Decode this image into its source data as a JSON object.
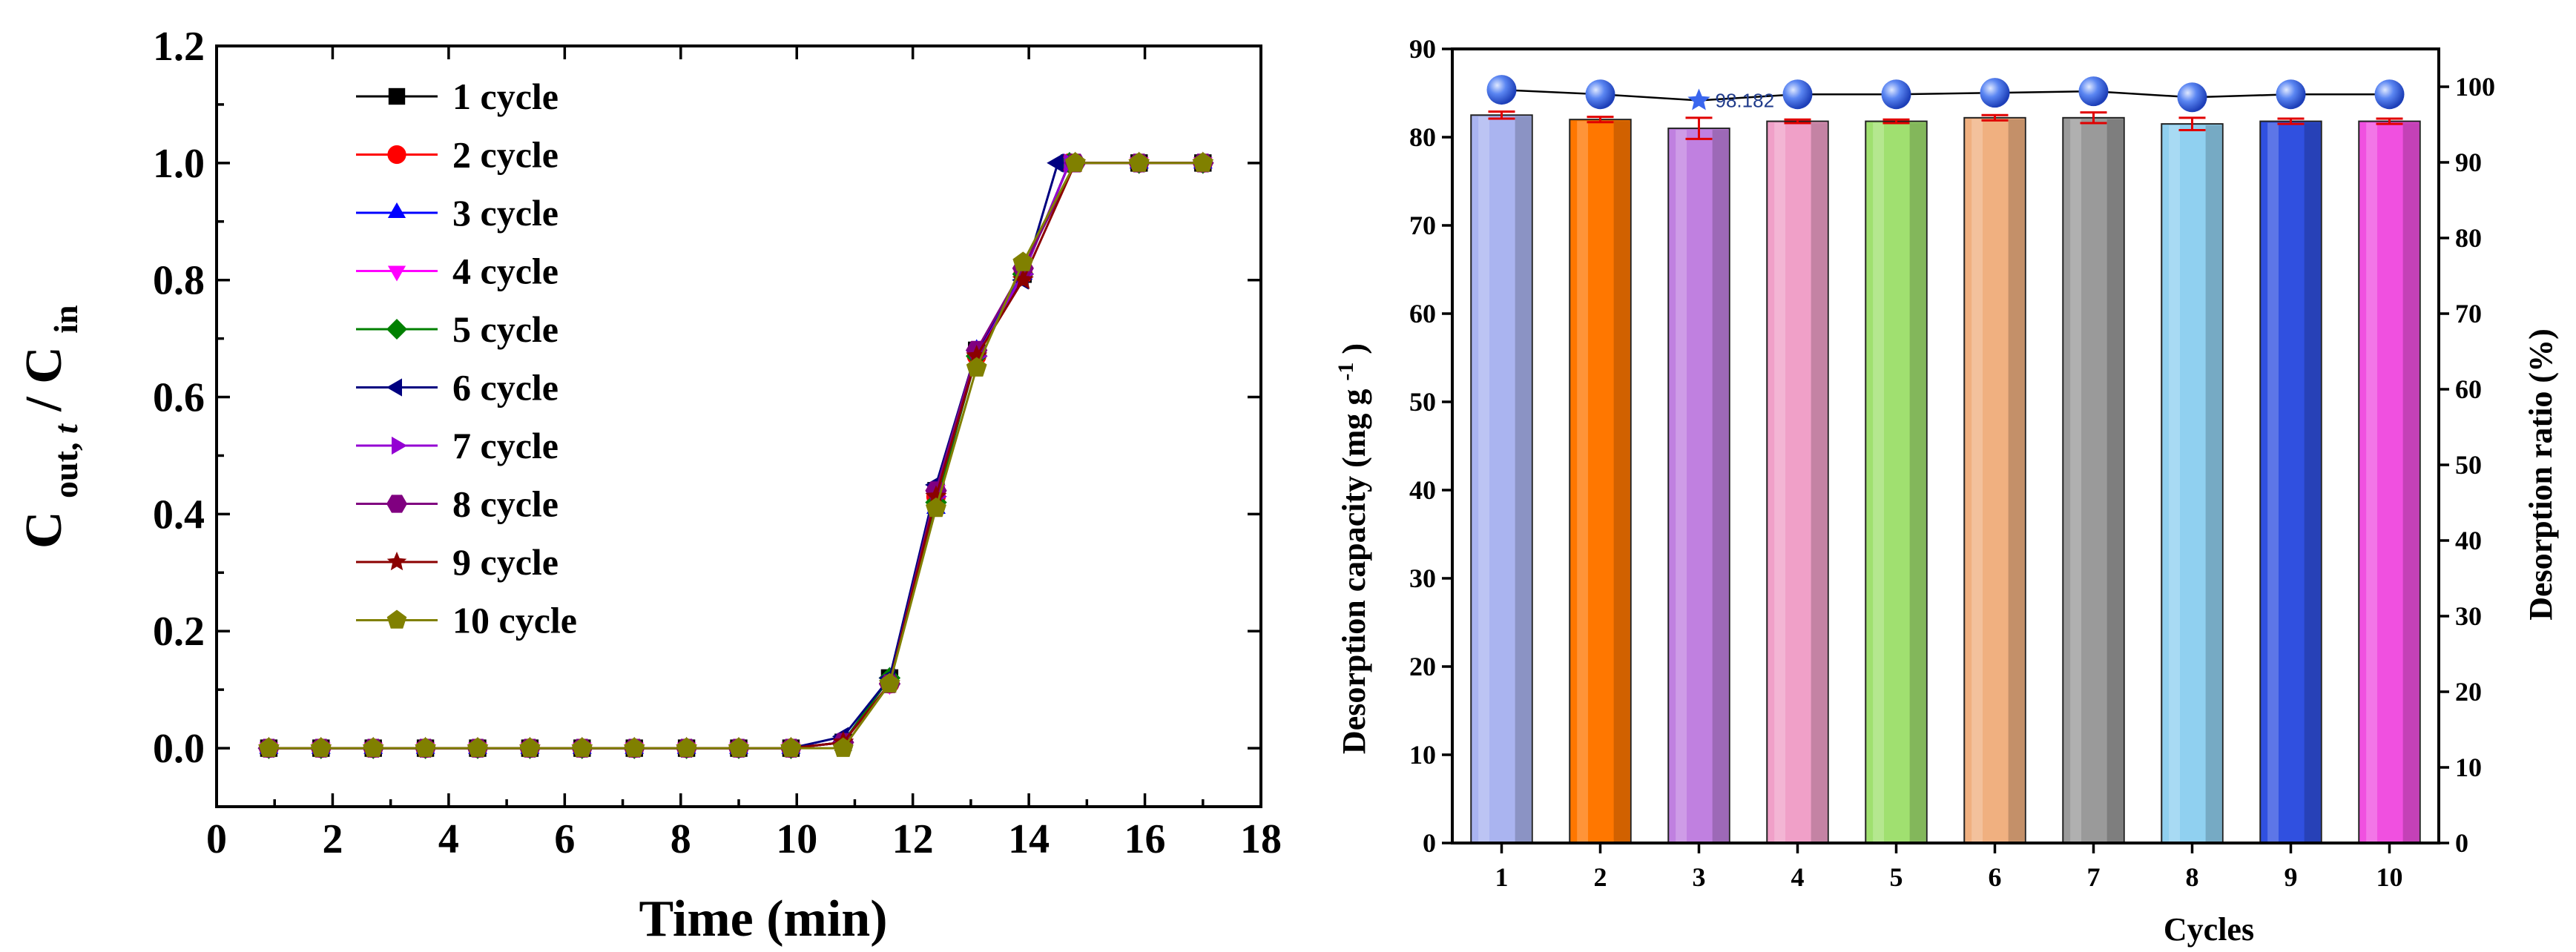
{
  "chart_data": [
    {
      "type": "line",
      "title": "",
      "xlabel": "Time (min)",
      "ylabel_main": "C",
      "ylabel_sub1": "out, ",
      "ylabel_italic": "t",
      "ylabel_slash": " / C",
      "ylabel_sub2": "in",
      "xlim": [
        0,
        18
      ],
      "ylim": [
        -0.1,
        1.2
      ],
      "x_ticks": [
        "0",
        "2",
        "4",
        "6",
        "8",
        "10",
        "12",
        "14",
        "16",
        "18"
      ],
      "y_ticks": [
        "0.0",
        "0.2",
        "0.4",
        "0.6",
        "0.8",
        "1.0",
        "1.2"
      ],
      "series": [
        {
          "name": "1 cycle",
          "color": "#000000",
          "marker": "square",
          "x": [
            0.9,
            1.8,
            2.7,
            3.6,
            4.5,
            5.4,
            6.3,
            7.2,
            8.1,
            9.0,
            9.9,
            10.8,
            11.6,
            12.4,
            13.1,
            13.9,
            14.7,
            15.9,
            17.0
          ],
          "y": [
            0,
            0,
            0,
            0,
            0,
            0,
            0,
            0,
            0,
            0,
            0,
            0.01,
            0.12,
            0.44,
            0.68,
            0.81,
            1.0,
            1.0,
            1.0
          ]
        },
        {
          "name": "2 cycle",
          "color": "#ff0000",
          "marker": "circle",
          "x": [
            0.9,
            1.8,
            2.7,
            3.6,
            4.5,
            5.4,
            6.3,
            7.2,
            8.1,
            9.0,
            9.9,
            10.8,
            11.6,
            12.4,
            13.1,
            13.9,
            14.7,
            15.9,
            17.0
          ],
          "y": [
            0,
            0,
            0,
            0,
            0,
            0,
            0,
            0,
            0,
            0,
            0,
            0.01,
            0.11,
            0.43,
            0.67,
            0.81,
            1.0,
            1.0,
            1.0
          ]
        },
        {
          "name": "3 cycle",
          "color": "#0000ff",
          "marker": "triangle-up",
          "x": [
            0.9,
            1.8,
            2.7,
            3.6,
            4.5,
            5.4,
            6.3,
            7.2,
            8.1,
            9.0,
            9.9,
            10.8,
            11.6,
            12.4,
            13.1,
            13.9,
            14.7,
            15.9,
            17.0
          ],
          "y": [
            0,
            0,
            0,
            0,
            0,
            0,
            0,
            0,
            0,
            0,
            0,
            0.01,
            0.12,
            0.41,
            0.68,
            0.81,
            1.0,
            1.0,
            1.0
          ]
        },
        {
          "name": "4 cycle",
          "color": "#ff00ff",
          "marker": "triangle-down",
          "x": [
            0.9,
            1.8,
            2.7,
            3.6,
            4.5,
            5.4,
            6.3,
            7.2,
            8.1,
            9.0,
            9.9,
            10.8,
            11.6,
            12.4,
            13.1,
            13.9,
            14.7,
            15.9,
            17.0
          ],
          "y": [
            0,
            0,
            0,
            0,
            0,
            0,
            0,
            0,
            0,
            0,
            0,
            0.01,
            0.11,
            0.44,
            0.67,
            0.81,
            1.0,
            1.0,
            1.0
          ]
        },
        {
          "name": "5 cycle",
          "color": "#008000",
          "marker": "diamond",
          "x": [
            0.9,
            1.8,
            2.7,
            3.6,
            4.5,
            5.4,
            6.3,
            7.2,
            8.1,
            9.0,
            9.9,
            10.8,
            11.6,
            12.4,
            13.1,
            13.9,
            14.7,
            15.9,
            17.0
          ],
          "y": [
            0,
            0,
            0,
            0,
            0,
            0,
            0,
            0,
            0,
            0,
            0,
            0.01,
            0.12,
            0.42,
            0.67,
            0.81,
            1.0,
            1.0,
            1.0
          ]
        },
        {
          "name": "6 cycle",
          "color": "#000080",
          "marker": "triangle-left",
          "x": [
            0.9,
            1.8,
            2.7,
            3.6,
            4.5,
            5.4,
            6.3,
            7.2,
            8.1,
            9.0,
            9.9,
            10.8,
            11.6,
            12.4,
            13.1,
            13.9,
            14.5,
            15.9,
            17.0
          ],
          "y": [
            0,
            0,
            0,
            0,
            0,
            0,
            0,
            0,
            0,
            0,
            0,
            0.02,
            0.12,
            0.45,
            0.68,
            0.8,
            1.0,
            1.0,
            1.0
          ]
        },
        {
          "name": "7 cycle",
          "color": "#9400d3",
          "marker": "triangle-right",
          "x": [
            0.9,
            1.8,
            2.7,
            3.6,
            4.5,
            5.4,
            6.3,
            7.2,
            8.1,
            9.0,
            9.9,
            10.8,
            11.6,
            12.4,
            13.1,
            13.9,
            14.7,
            15.9,
            17.0
          ],
          "y": [
            0,
            0,
            0,
            0,
            0,
            0,
            0,
            0,
            0,
            0,
            0,
            0.01,
            0.11,
            0.43,
            0.67,
            0.81,
            1.0,
            1.0,
            1.0
          ]
        },
        {
          "name": "8 cycle",
          "color": "#800080",
          "marker": "hexagon",
          "x": [
            0.9,
            1.8,
            2.7,
            3.6,
            4.5,
            5.4,
            6.3,
            7.2,
            8.1,
            9.0,
            9.9,
            10.8,
            11.6,
            12.4,
            13.1,
            13.9,
            14.8,
            15.9,
            17.0
          ],
          "y": [
            0,
            0,
            0,
            0,
            0,
            0,
            0,
            0,
            0,
            0,
            0,
            0.01,
            0.11,
            0.44,
            0.68,
            0.82,
            1.0,
            1.0,
            1.0
          ]
        },
        {
          "name": "9 cycle",
          "color": "#8b0000",
          "marker": "star",
          "x": [
            0.9,
            1.8,
            2.7,
            3.6,
            4.5,
            5.4,
            6.3,
            7.2,
            8.1,
            9.0,
            9.9,
            10.8,
            11.6,
            12.4,
            13.1,
            13.9,
            14.8,
            15.9,
            17.0
          ],
          "y": [
            0,
            0,
            0,
            0,
            0,
            0,
            0,
            0,
            0,
            0,
            0,
            0.01,
            0.11,
            0.43,
            0.67,
            0.8,
            1.0,
            1.0,
            1.0
          ]
        },
        {
          "name": "10 cycle",
          "color": "#808000",
          "marker": "pentagon",
          "x": [
            0.9,
            1.8,
            2.7,
            3.6,
            4.5,
            5.4,
            6.3,
            7.2,
            8.1,
            9.0,
            9.9,
            10.8,
            11.6,
            12.4,
            13.1,
            13.9,
            14.8,
            15.9,
            17.0
          ],
          "y": [
            0,
            0,
            0,
            0,
            0,
            0,
            0,
            0,
            0,
            0,
            0,
            0.0,
            0.11,
            0.41,
            0.65,
            0.83,
            1.0,
            1.0,
            1.0
          ]
        }
      ]
    },
    {
      "type": "bar",
      "title": "",
      "xlabel": "Cycles",
      "ylabel": "Desorption capacity (mg g",
      "ylabel_sup": "-1",
      "ylabel_end": ")",
      "y2label": "Desorption ratio (%)",
      "categories": [
        "1",
        "2",
        "3",
        "4",
        "5",
        "6",
        "7",
        "8",
        "9",
        "10"
      ],
      "values": [
        82.5,
        82.0,
        81.0,
        81.8,
        81.8,
        82.2,
        82.2,
        81.5,
        81.8,
        81.8
      ],
      "errors": [
        0.4,
        0.3,
        1.2,
        0.2,
        0.2,
        0.3,
        0.6,
        0.7,
        0.3,
        0.3
      ],
      "bar_colors": [
        "#aab4f0",
        "#ff7700",
        "#c080e0",
        "#f0a0c8",
        "#a0e070",
        "#f0b080",
        "#9a9a9a",
        "#90d0f0",
        "#3050e0",
        "#f050e0"
      ],
      "ylim": [
        0,
        90
      ],
      "y_ticks": [
        "0",
        "10",
        "20",
        "30",
        "40",
        "50",
        "60",
        "70",
        "80",
        "90"
      ],
      "y2lim": [
        0,
        105
      ],
      "y2_ticks": [
        "0",
        "10",
        "20",
        "30",
        "40",
        "50",
        "60",
        "70",
        "80",
        "90",
        "100"
      ],
      "ratio_series": {
        "name": "Desorption ratio",
        "color": "#3a66ee",
        "values": [
          99.6,
          99.0,
          98.182,
          99.0,
          99.0,
          99.2,
          99.4,
          98.6,
          99.0,
          99.0
        ]
      },
      "annotation": "98.182"
    }
  ]
}
